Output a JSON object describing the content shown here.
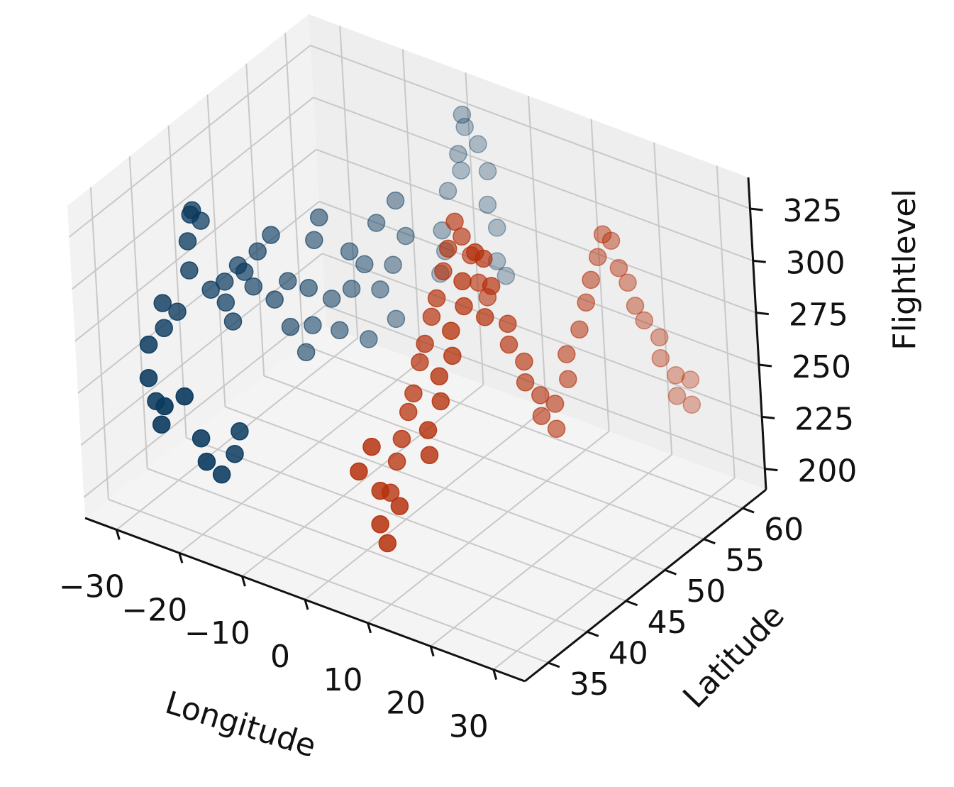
{
  "chart_data": {
    "type": "scatter3d",
    "title": "",
    "xlabel": "Longitude",
    "ylabel": "Latitude",
    "zlabel": "Flightlevel",
    "xlim": [
      -35,
      35
    ],
    "ylim": [
      32,
      63
    ],
    "zlim": [
      190,
      340
    ],
    "x_ticks": [
      -30,
      -20,
      -10,
      0,
      10,
      20,
      30
    ],
    "x_tick_labels": [
      "−30",
      "−20",
      "−10",
      "0",
      "10",
      "20",
      "30"
    ],
    "y_ticks": [
      35,
      40,
      45,
      50,
      55,
      60
    ],
    "y_tick_labels": [
      "35",
      "40",
      "45",
      "50",
      "55",
      "60"
    ],
    "z_ticks": [
      200,
      225,
      250,
      275,
      300,
      325
    ],
    "z_tick_labels": [
      "200",
      "225",
      "250",
      "275",
      "300",
      "325"
    ],
    "grid": true,
    "colors": {
      "blue_series": "#0b3a5e",
      "orange_series": "#b5300b",
      "pane": "#f2f2f2",
      "grid": "#c8c8c8"
    },
    "series": [
      {
        "color": "#0b3a5e",
        "points": [
          [
            -31,
            40,
            262
          ],
          [
            -31,
            40,
            274
          ],
          [
            -30,
            41,
            268
          ],
          [
            -29,
            42,
            286
          ],
          [
            -29,
            42,
            300
          ],
          [
            -28,
            43,
            308
          ],
          [
            -28,
            42,
            316
          ],
          [
            -27,
            41,
            318
          ],
          [
            -27,
            43,
            276
          ],
          [
            -26,
            44,
            268
          ],
          [
            -26,
            44,
            278
          ],
          [
            -25,
            45,
            284
          ],
          [
            -25,
            44,
            260
          ],
          [
            -24,
            46,
            272
          ],
          [
            -24,
            45,
            282
          ],
          [
            -23,
            46,
            290
          ],
          [
            -22,
            47,
            265
          ],
          [
            -22,
            47,
            296
          ],
          [
            -21,
            48,
            250
          ],
          [
            -21,
            48,
            272
          ],
          [
            -20,
            49,
            236
          ],
          [
            -20,
            50,
            246
          ],
          [
            -19,
            49,
            268
          ],
          [
            -19,
            50,
            288
          ],
          [
            -18,
            50,
            300
          ],
          [
            -18,
            51,
            258
          ],
          [
            -17,
            51,
            244
          ],
          [
            -16,
            52,
            262
          ],
          [
            -16,
            52,
            280
          ],
          [
            -15,
            53,
            236
          ],
          [
            -15,
            53,
            272
          ],
          [
            -14,
            54,
            258
          ],
          [
            -14,
            54,
            290
          ],
          [
            -13,
            55,
            242
          ],
          [
            -13,
            55,
            268
          ],
          [
            -12,
            56,
            280
          ],
          [
            -12,
            55,
            300
          ],
          [
            -31,
            38,
            260
          ],
          [
            -30,
            37,
            248
          ],
          [
            -29,
            37,
            238
          ],
          [
            -27,
            36,
            232
          ],
          [
            -25,
            35,
            246
          ],
          [
            -23,
            36,
            250
          ],
          [
            -22,
            37,
            228
          ],
          [
            -20,
            36,
            222
          ],
          [
            -19,
            37,
            214
          ],
          [
            -18,
            38,
            222
          ],
          [
            -17,
            38,
            234
          ],
          [
            -12,
            60,
            250
          ],
          [
            -11,
            60,
            262
          ],
          [
            -10,
            59,
            276
          ],
          [
            -10,
            60,
            292
          ],
          [
            -9,
            61,
            300
          ],
          [
            -8,
            60,
            312
          ],
          [
            -8,
            61,
            322
          ],
          [
            -7,
            60,
            332
          ],
          [
            -6,
            61,
            316
          ],
          [
            -6,
            62,
            300
          ],
          [
            -5,
            61,
            288
          ],
          [
            -5,
            62,
            274
          ],
          [
            -4,
            61,
            262
          ],
          [
            -4,
            62,
            252
          ]
        ]
      },
      {
        "color": "#b5300b",
        "points": [
          [
            11,
            40,
            248
          ],
          [
            11,
            40,
            260
          ],
          [
            12,
            41,
            272
          ],
          [
            12,
            41,
            284
          ],
          [
            13,
            42,
            292
          ],
          [
            13,
            42,
            304
          ],
          [
            14,
            43,
            314
          ],
          [
            14,
            43,
            326
          ],
          [
            15,
            44,
            338
          ],
          [
            15,
            45,
            332
          ],
          [
            16,
            45,
            320
          ],
          [
            16,
            44,
            308
          ],
          [
            17,
            46,
            300
          ],
          [
            17,
            46,
            290
          ],
          [
            18,
            47,
            280
          ],
          [
            18,
            47,
            270
          ],
          [
            19,
            48,
            262
          ],
          [
            19,
            48,
            252
          ],
          [
            20,
            49,
            244
          ],
          [
            20,
            49,
            256
          ],
          [
            21,
            50,
            266
          ],
          [
            21,
            50,
            278
          ],
          [
            22,
            51,
            288
          ],
          [
            22,
            52,
            298
          ],
          [
            23,
            52,
            310
          ],
          [
            23,
            53,
            318
          ],
          [
            24,
            53,
            330
          ],
          [
            24,
            54,
            324
          ],
          [
            25,
            54,
            312
          ],
          [
            25,
            55,
            302
          ],
          [
            26,
            55,
            292
          ],
          [
            26,
            56,
            282
          ],
          [
            27,
            57,
            272
          ],
          [
            27,
            57,
            262
          ],
          [
            28,
            58,
            252
          ],
          [
            28,
            58,
            242
          ],
          [
            29,
            59,
            236
          ],
          [
            29,
            59,
            248
          ],
          [
            3,
            41,
            218
          ],
          [
            3,
            42,
            230
          ],
          [
            4,
            42,
            242
          ],
          [
            4,
            43,
            252
          ],
          [
            5,
            43,
            262
          ],
          [
            5,
            44,
            274
          ],
          [
            6,
            44,
            284
          ],
          [
            6,
            45,
            294
          ],
          [
            7,
            45,
            304
          ],
          [
            7,
            46,
            314
          ],
          [
            8,
            46,
            326
          ],
          [
            8,
            47,
            336
          ],
          [
            9,
            47,
            330
          ],
          [
            9,
            48,
            318
          ],
          [
            10,
            48,
            306
          ],
          [
            10,
            49,
            296
          ],
          [
            2,
            38,
            236
          ],
          [
            3,
            39,
            246
          ],
          [
            4,
            39,
            226
          ],
          [
            5,
            38,
            214
          ],
          [
            6,
            38,
            206
          ],
          [
            7,
            39,
            222
          ]
        ]
      }
    ]
  }
}
